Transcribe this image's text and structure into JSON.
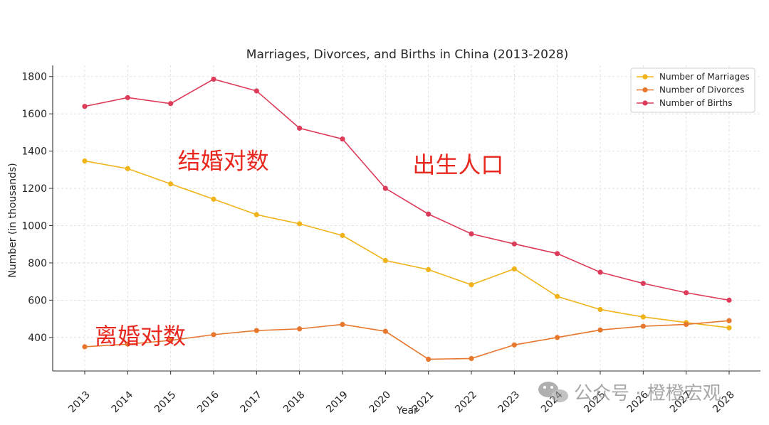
{
  "chart_data": {
    "type": "line",
    "title": "Marriages, Divorces, and Births in China (2013-2028)",
    "xlabel": "Year",
    "ylabel": "Number (in thousands)",
    "x": [
      "2013",
      "2014",
      "2015",
      "2016",
      "2017",
      "2018",
      "2019",
      "2020",
      "2021",
      "2022",
      "2023",
      "2024",
      "2025",
      "2026",
      "2027",
      "2028"
    ],
    "ylim": [
      220,
      1860
    ],
    "yticks": [
      400,
      600,
      800,
      1000,
      1200,
      1400,
      1600,
      1800
    ],
    "grid": true,
    "legend_position": "top-right",
    "series": [
      {
        "name": "Number of Marriages",
        "color": "#f0b319",
        "values": [
          1347,
          1306,
          1224,
          1142,
          1059,
          1010,
          947,
          813,
          764,
          683,
          768,
          620,
          550,
          510,
          480,
          452
        ]
      },
      {
        "name": "Number of Divorces",
        "color": "#e8772e",
        "values": [
          350,
          364,
          384,
          415,
          437,
          446,
          470,
          433,
          283,
          287,
          360,
          400,
          440,
          460,
          470,
          490
        ]
      },
      {
        "name": "Number of Births",
        "color": "#dc3b5a",
        "values": [
          1640,
          1687,
          1655,
          1786,
          1723,
          1523,
          1465,
          1200,
          1062,
          956,
          902,
          850,
          750,
          690,
          640,
          600
        ]
      }
    ],
    "annotations": [
      {
        "text": "结婚对数",
        "x": "2015",
        "y": 1305,
        "color": "#e8281e"
      },
      {
        "text": "出生人口",
        "x": "2020",
        "y": 1285,
        "color": "#e8281e"
      },
      {
        "text": "离婚对数",
        "x": "2013",
        "y": 365,
        "color": "#e8281e"
      }
    ]
  },
  "watermark": {
    "text": "公众号 · 橙橙宏观",
    "icon": "wechat-icon"
  }
}
